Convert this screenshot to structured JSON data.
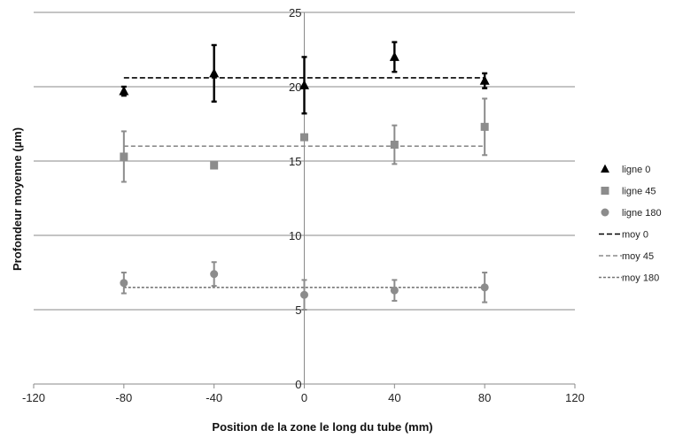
{
  "chart_data": {
    "type": "scatter",
    "xlabel": "Position de la zone le long du tube (mm)",
    "ylabel": "Profondeur moyenne (µm)",
    "xlim": [
      -120,
      120
    ],
    "ylim": [
      0,
      25
    ],
    "xticks": [
      -120,
      -80,
      -40,
      0,
      40,
      80,
      120
    ],
    "yticks": [
      0,
      5,
      10,
      15,
      20,
      25
    ],
    "grid": "horizontal major gridlines",
    "legend_position": "right",
    "series": [
      {
        "name": "ligne 0",
        "kind": "points",
        "marker": "triangle",
        "color": "#000000",
        "x": [
          -80,
          -40,
          0,
          40,
          80
        ],
        "y": [
          19.7,
          20.9,
          20.1,
          22.0,
          20.4
        ],
        "err": [
          0.3,
          1.9,
          1.9,
          1.0,
          0.5
        ]
      },
      {
        "name": "ligne 45",
        "kind": "points",
        "marker": "square",
        "color": "#8c8c8c",
        "x": [
          -80,
          -40,
          0,
          40,
          80
        ],
        "y": [
          15.3,
          14.7,
          16.6,
          16.1,
          17.3
        ],
        "err": [
          1.7,
          0,
          0.2,
          1.3,
          1.9
        ]
      },
      {
        "name": "ligne 180",
        "kind": "points",
        "marker": "circle",
        "color": "#8c8c8c",
        "x": [
          -80,
          -40,
          0,
          40,
          80
        ],
        "y": [
          6.8,
          7.4,
          6.0,
          6.3,
          6.5
        ],
        "err": [
          0.7,
          0.8,
          1.0,
          0.7,
          1.0
        ]
      },
      {
        "name": "moy 0",
        "kind": "line",
        "dash": "long",
        "color": "#000000",
        "x": [
          -80,
          80
        ],
        "y": [
          20.6,
          20.6
        ]
      },
      {
        "name": "moy 45",
        "kind": "line",
        "dash": "medium",
        "color": "#8c8c8c",
        "x": [
          -80,
          80
        ],
        "y": [
          16.0,
          16.0
        ]
      },
      {
        "name": "moy 180",
        "kind": "line",
        "dash": "short",
        "color": "#777777",
        "x": [
          -80,
          80
        ],
        "y": [
          6.5,
          6.5
        ]
      }
    ]
  }
}
